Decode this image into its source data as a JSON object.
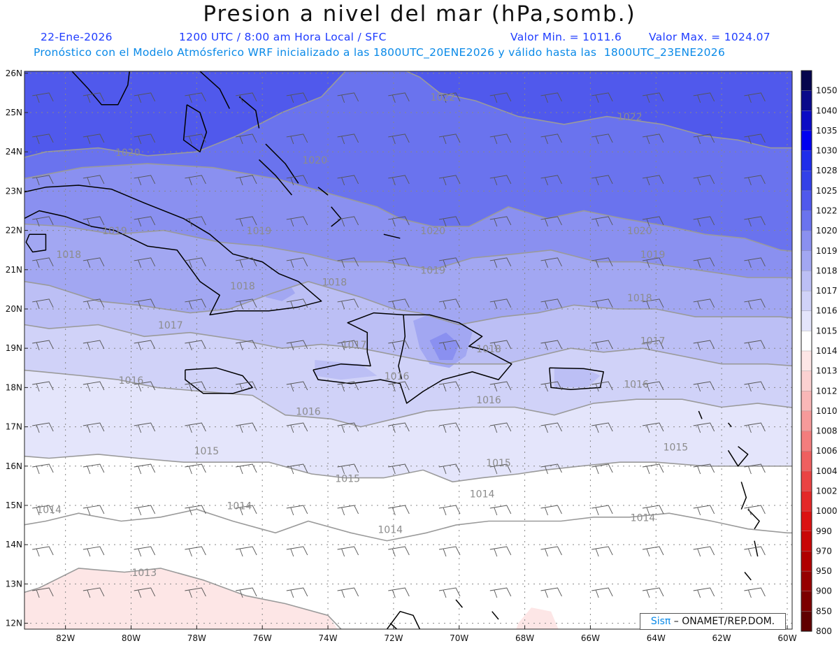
{
  "header": {
    "title": "Presion a nivel del mar (hPa,somb.)",
    "date": "22-Ene-2026",
    "time_info": "1200 UTC / 8:00 am Hora Local / SFC",
    "min_label": "Valor Min. = 1011.6",
    "max_label": "Valor Max. = 1024.07",
    "forecast_info": "Pronóstico con el Modelo Atmósferico WRF inicializado a las 1800UTC_20ENE2026 y válido hasta las  1800UTC_23ENE2026"
  },
  "axes": {
    "lat_labels": [
      "26N",
      "25N",
      "24N",
      "23N",
      "22N",
      "21N",
      "20N",
      "19N",
      "18N",
      "17N",
      "16N",
      "15N",
      "14N",
      "13N",
      "12N"
    ],
    "lon_labels": [
      "82W",
      "80W",
      "78W",
      "76W",
      "74W",
      "72W",
      "70W",
      "68W",
      "66W",
      "64W",
      "62W",
      "60W"
    ]
  },
  "colorbar": {
    "levels": [
      {
        "label": "1050",
        "color": "#06064d"
      },
      {
        "label": "1040",
        "color": "#0a0a8a"
      },
      {
        "label": "1035",
        "color": "#0c0cc4"
      },
      {
        "label": "1030",
        "color": "#0000f0"
      },
      {
        "label": "1028",
        "color": "#1f2dea"
      },
      {
        "label": "1025",
        "color": "#3341e8"
      },
      {
        "label": "1022",
        "color": "#5059ec"
      },
      {
        "label": "1020",
        "color": "#6a73ee"
      },
      {
        "label": "1019",
        "color": "#8a90f0"
      },
      {
        "label": "1018",
        "color": "#a2a7f2"
      },
      {
        "label": "1017",
        "color": "#bcbff5"
      },
      {
        "label": "1016",
        "color": "#d0d2f8"
      },
      {
        "label": "1015",
        "color": "#e4e5fb"
      },
      {
        "label": "1014",
        "color": "#ffffff"
      },
      {
        "label": "1013",
        "color": "#fde6e6"
      },
      {
        "label": "1012",
        "color": "#fbd1d1"
      },
      {
        "label": "1010",
        "color": "#f9b7b7"
      },
      {
        "label": "1008",
        "color": "#f69a9a"
      },
      {
        "label": "1006",
        "color": "#f37d7d"
      },
      {
        "label": "1004",
        "color": "#ef5f5f"
      },
      {
        "label": "1002",
        "color": "#ea4343"
      },
      {
        "label": "1000",
        "color": "#e42828"
      },
      {
        "label": "990",
        "color": "#db1212"
      },
      {
        "label": "970",
        "color": "#c80606"
      },
      {
        "label": "950",
        "color": "#b00000"
      },
      {
        "label": "900",
        "color": "#960000"
      },
      {
        "label": "850",
        "color": "#7c0000"
      },
      {
        "label": "800",
        "color": "#600000"
      }
    ]
  },
  "isobars": [
    {
      "label": "1022",
      "lon": -70.5,
      "lat": 25.3
    },
    {
      "label": "1022",
      "lon": -64.8,
      "lat": 24.8
    },
    {
      "label": "1020",
      "lon": -80.1,
      "lat": 23.9
    },
    {
      "label": "1020",
      "lon": -74.4,
      "lat": 23.7
    },
    {
      "label": "1020",
      "lon": -70.8,
      "lat": 21.9
    },
    {
      "label": "1020",
      "lon": -64.5,
      "lat": 21.9
    },
    {
      "label": "1019",
      "lon": -80.5,
      "lat": 21.9
    },
    {
      "label": "1019",
      "lon": -76.1,
      "lat": 21.9
    },
    {
      "label": "1019",
      "lon": -70.8,
      "lat": 20.9
    },
    {
      "label": "1019",
      "lon": -64.1,
      "lat": 21.3
    },
    {
      "label": "1018",
      "lon": -81.9,
      "lat": 21.3
    },
    {
      "label": "1018",
      "lon": -76.6,
      "lat": 20.5
    },
    {
      "label": "1018",
      "lon": -73.8,
      "lat": 20.6
    },
    {
      "label": "1018",
      "lon": -69.1,
      "lat": 18.9
    },
    {
      "label": "1018",
      "lon": -64.5,
      "lat": 20.2
    },
    {
      "label": "1017",
      "lon": -78.8,
      "lat": 19.5
    },
    {
      "label": "1017",
      "lon": -73.2,
      "lat": 19.0
    },
    {
      "label": "1017",
      "lon": -64.1,
      "lat": 19.1
    },
    {
      "label": "1016",
      "lon": -71.9,
      "lat": 18.2
    },
    {
      "label": "1016",
      "lon": -80.0,
      "lat": 18.1
    },
    {
      "label": "1016",
      "lon": -74.6,
      "lat": 17.3
    },
    {
      "label": "1016",
      "lon": -69.1,
      "lat": 17.6
    },
    {
      "label": "1016",
      "lon": -64.6,
      "lat": 18.0
    },
    {
      "label": "1015",
      "lon": -77.7,
      "lat": 16.3
    },
    {
      "label": "1015",
      "lon": -73.4,
      "lat": 15.6
    },
    {
      "label": "1015",
      "lon": -68.8,
      "lat": 16.0
    },
    {
      "label": "1015",
      "lon": -63.4,
      "lat": 16.4
    },
    {
      "label": "1014",
      "lon": -82.5,
      "lat": 14.8
    },
    {
      "label": "1014",
      "lon": -76.7,
      "lat": 14.9
    },
    {
      "label": "1014",
      "lon": -72.1,
      "lat": 14.3
    },
    {
      "label": "1014",
      "lon": -69.3,
      "lat": 15.2
    },
    {
      "label": "1014",
      "lon": -64.4,
      "lat": 14.6
    },
    {
      "label": "1013",
      "lon": -79.6,
      "lat": 13.2
    }
  ],
  "credit": {
    "brand": "Sisπ",
    "text": " – ONAMET/REP.DOM."
  }
}
